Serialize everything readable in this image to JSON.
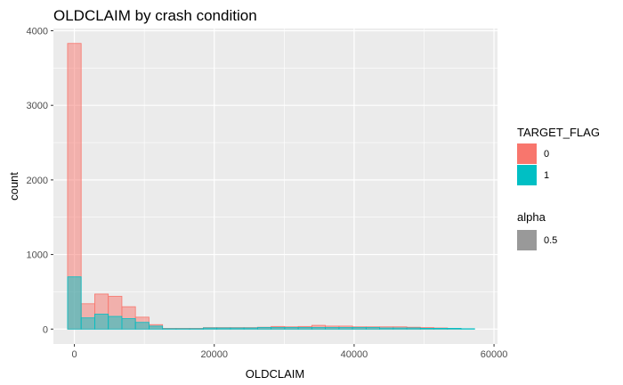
{
  "chart_data": {
    "type": "bar",
    "title": "OLDCLAIM by crash condition",
    "xlabel": "OLDCLAIM",
    "ylabel": "count",
    "xlim": [
      -3000,
      60500
    ],
    "ylim": [
      -200,
      4030
    ],
    "x_ticks": [
      0,
      20000,
      40000,
      60000
    ],
    "x_tick_labels": [
      "0",
      "20000",
      "40000",
      "60000"
    ],
    "y_ticks": [
      0,
      1000,
      2000,
      3000,
      4000
    ],
    "y_tick_labels": [
      "0",
      "1000",
      "2000",
      "3000",
      "4000"
    ],
    "grid": true,
    "bin_width": 1940,
    "bin_start": -970,
    "bin_count": 30,
    "series": [
      {
        "name": "0",
        "color": "#F8766D",
        "values": [
          3830,
          340,
          470,
          440,
          300,
          160,
          60,
          10,
          10,
          10,
          20,
          20,
          20,
          20,
          25,
          35,
          30,
          35,
          50,
          40,
          40,
          30,
          30,
          30,
          30,
          25,
          20,
          15,
          10,
          0
        ]
      },
      {
        "name": "1",
        "color": "#00BFC4",
        "values": [
          700,
          150,
          200,
          170,
          140,
          90,
          40,
          5,
          5,
          5,
          15,
          15,
          15,
          15,
          20,
          20,
          20,
          20,
          20,
          20,
          20,
          20,
          20,
          15,
          15,
          15,
          10,
          10,
          10,
          5
        ]
      }
    ],
    "legend": {
      "position": "right",
      "fill_title": "TARGET_FLAG",
      "fill_entries": [
        {
          "label": "0",
          "color": "#F8766D"
        },
        {
          "label": "1",
          "color": "#00BFC4"
        }
      ],
      "alpha_title": "alpha",
      "alpha_entries": [
        {
          "label": "0.5",
          "color": "#999999"
        }
      ]
    },
    "alpha": 0.5,
    "panel_background": "#EBEBEB",
    "grid_color": "#FFFFFF"
  }
}
